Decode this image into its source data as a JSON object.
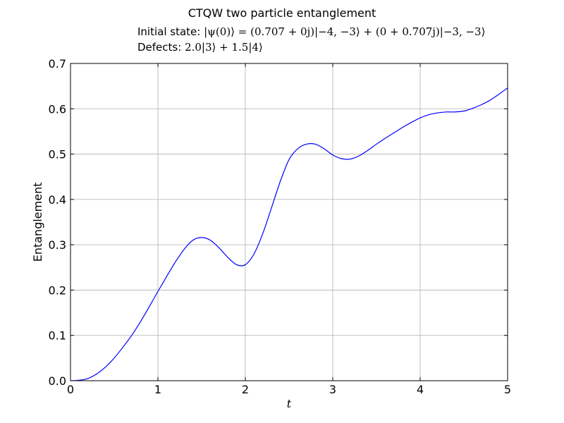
{
  "chart_data": {
    "type": "line",
    "title": "CTQW two particle entanglement",
    "subtitle_lines": [
      {
        "label": "Initial state: ",
        "math": "|ψ(0)⟩ = (0.707 + 0j)|−4, −3⟩ + (0 + 0.707j)|−3, −3⟩"
      },
      {
        "label": "Defects: ",
        "math": "2.0|3⟩ + 1.5|4⟩"
      }
    ],
    "xlabel": "t",
    "ylabel": "Entanglement",
    "xlim": [
      0,
      5
    ],
    "ylim": [
      0.0,
      0.7
    ],
    "xticks": [
      0,
      1,
      2,
      3,
      4,
      5
    ],
    "xtick_labels": [
      "0",
      "1",
      "2",
      "3",
      "4",
      "5"
    ],
    "yticks": [
      0.0,
      0.1,
      0.2,
      0.3,
      0.4,
      0.5,
      0.6,
      0.7
    ],
    "ytick_labels": [
      "0.0",
      "0.1",
      "0.2",
      "0.3",
      "0.4",
      "0.5",
      "0.6",
      "0.7"
    ],
    "grid": true,
    "series": [
      {
        "color": "#0000ff",
        "x": [
          0.0,
          0.1,
          0.2,
          0.3,
          0.4,
          0.5,
          0.6,
          0.7,
          0.8,
          0.9,
          1.0,
          1.1,
          1.2,
          1.3,
          1.4,
          1.5,
          1.6,
          1.7,
          1.8,
          1.9,
          2.0,
          2.1,
          2.2,
          2.3,
          2.4,
          2.5,
          2.6,
          2.7,
          2.8,
          2.9,
          3.0,
          3.1,
          3.2,
          3.3,
          3.4,
          3.5,
          3.6,
          3.7,
          3.8,
          3.9,
          4.0,
          4.1,
          4.2,
          4.3,
          4.4,
          4.5,
          4.6,
          4.7,
          4.8,
          4.9,
          5.0
        ],
        "y": [
          0.0,
          0.001,
          0.005,
          0.015,
          0.03,
          0.05,
          0.074,
          0.1,
          0.13,
          0.163,
          0.197,
          0.23,
          0.262,
          0.29,
          0.31,
          0.316,
          0.31,
          0.293,
          0.272,
          0.256,
          0.256,
          0.28,
          0.325,
          0.382,
          0.44,
          0.488,
          0.512,
          0.522,
          0.522,
          0.512,
          0.498,
          0.49,
          0.489,
          0.496,
          0.508,
          0.522,
          0.535,
          0.547,
          0.559,
          0.57,
          0.58,
          0.587,
          0.591,
          0.593,
          0.593,
          0.595,
          0.601,
          0.609,
          0.619,
          0.632,
          0.646
        ]
      }
    ]
  }
}
